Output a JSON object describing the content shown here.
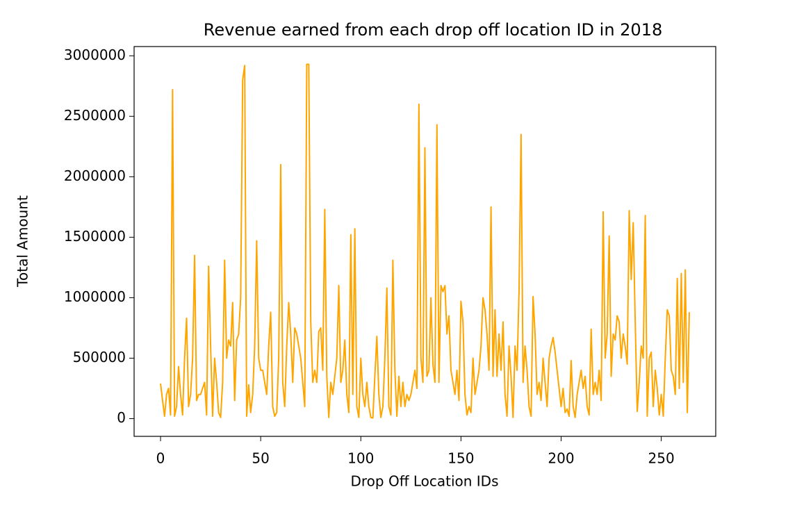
{
  "chart_data": {
    "type": "line",
    "title": "Revenue earned from each drop off location ID in 2018",
    "xlabel": "Drop Off Location IDs",
    "ylabel": "Total Amount",
    "xlim": [
      -13.2,
      277.2
    ],
    "ylim": [
      -146500,
      3076500
    ],
    "xticks": [
      0,
      50,
      100,
      150,
      200,
      250
    ],
    "yticks": [
      0,
      500000,
      1000000,
      1500000,
      2000000,
      2500000,
      3000000
    ],
    "x": [
      0,
      1,
      2,
      3,
      4,
      5,
      6,
      7,
      8,
      9,
      10,
      11,
      12,
      13,
      14,
      15,
      16,
      17,
      18,
      19,
      20,
      21,
      22,
      23,
      24,
      25,
      26,
      27,
      28,
      29,
      30,
      31,
      32,
      33,
      34,
      35,
      36,
      37,
      38,
      39,
      40,
      41,
      42,
      43,
      44,
      45,
      46,
      47,
      48,
      49,
      50,
      51,
      52,
      53,
      54,
      55,
      56,
      57,
      58,
      59,
      60,
      61,
      62,
      63,
      64,
      65,
      66,
      67,
      68,
      69,
      70,
      71,
      72,
      73,
      74,
      75,
      76,
      77,
      78,
      79,
      80,
      81,
      82,
      83,
      84,
      85,
      86,
      87,
      88,
      89,
      90,
      91,
      92,
      93,
      94,
      95,
      96,
      97,
      98,
      99,
      100,
      101,
      102,
      103,
      104,
      105,
      106,
      107,
      108,
      109,
      110,
      111,
      112,
      113,
      114,
      115,
      116,
      117,
      118,
      119,
      120,
      121,
      122,
      123,
      124,
      125,
      126,
      127,
      128,
      129,
      130,
      131,
      132,
      133,
      134,
      135,
      136,
      137,
      138,
      139,
      140,
      141,
      142,
      143,
      144,
      145,
      146,
      147,
      148,
      149,
      150,
      151,
      152,
      153,
      154,
      155,
      156,
      157,
      158,
      159,
      160,
      161,
      162,
      163,
      164,
      165,
      166,
      167,
      168,
      169,
      170,
      171,
      172,
      173,
      174,
      175,
      176,
      177,
      178,
      179,
      180,
      181,
      182,
      183,
      184,
      185,
      186,
      187,
      188,
      189,
      190,
      191,
      192,
      193,
      194,
      195,
      196,
      197,
      198,
      199,
      200,
      201,
      202,
      203,
      204,
      205,
      206,
      207,
      208,
      209,
      210,
      211,
      212,
      213,
      214,
      215,
      216,
      217,
      218,
      219,
      220,
      221,
      222,
      223,
      224,
      225,
      226,
      227,
      228,
      229,
      230,
      231,
      232,
      233,
      234,
      235,
      236,
      237,
      238,
      239,
      240,
      241,
      242,
      243,
      244,
      245,
      246,
      247,
      248,
      249,
      250,
      251,
      252,
      253,
      254,
      255,
      256,
      257,
      258,
      259,
      260,
      261,
      262,
      263,
      264
    ],
    "series": [
      {
        "color": "#ffa500",
        "values": [
          290000,
          150000,
          20000,
          200000,
          250000,
          30000,
          2720000,
          20000,
          100000,
          430000,
          200000,
          30000,
          500000,
          830000,
          100000,
          200000,
          500000,
          1350000,
          150000,
          200000,
          200000,
          250000,
          300000,
          30000,
          1260000,
          600000,
          20000,
          500000,
          300000,
          50000,
          10000,
          300000,
          1310000,
          500000,
          650000,
          600000,
          960000,
          150000,
          650000,
          700000,
          1000000,
          2800000,
          2920000,
          20000,
          280000,
          50000,
          200000,
          600000,
          1470000,
          500000,
          400000,
          400000,
          300000,
          200000,
          600000,
          880000,
          100000,
          20000,
          50000,
          500000,
          2100000,
          300000,
          100000,
          600000,
          960000,
          700000,
          300000,
          750000,
          700000,
          600000,
          500000,
          300000,
          100000,
          2930000,
          2930000,
          800000,
          300000,
          400000,
          300000,
          720000,
          750000,
          400000,
          1730000,
          350000,
          10000,
          300000,
          200000,
          350000,
          500000,
          1100000,
          300000,
          400000,
          650000,
          200000,
          50000,
          1520000,
          200000,
          1570000,
          100000,
          10000,
          500000,
          200000,
          100000,
          300000,
          100000,
          10000,
          5000,
          350000,
          680000,
          200000,
          10000,
          100000,
          500000,
          1080000,
          100000,
          30000,
          1310000,
          400000,
          20000,
          350000,
          100000,
          300000,
          100000,
          200000,
          150000,
          200000,
          300000,
          400000,
          250000,
          2600000,
          500000,
          300000,
          2240000,
          350000,
          400000,
          1000000,
          450000,
          300000,
          2430000,
          300000,
          1100000,
          1050000,
          1100000,
          700000,
          850000,
          400000,
          300000,
          200000,
          400000,
          150000,
          970000,
          800000,
          200000,
          30000,
          100000,
          50000,
          500000,
          200000,
          300000,
          400000,
          600000,
          1000000,
          900000,
          700000,
          400000,
          1750000,
          350000,
          900000,
          350000,
          700000,
          400000,
          800000,
          200000,
          20000,
          600000,
          350000,
          10000,
          600000,
          400000,
          1060000,
          2350000,
          300000,
          600000,
          400000,
          100000,
          20000,
          1010000,
          700000,
          200000,
          300000,
          150000,
          500000,
          300000,
          100000,
          500000,
          600000,
          670000,
          550000,
          400000,
          250000,
          100000,
          250000,
          50000,
          80000,
          20000,
          480000,
          100000,
          10000,
          200000,
          300000,
          400000,
          250000,
          350000,
          100000,
          30000,
          740000,
          200000,
          300000,
          200000,
          400000,
          150000,
          1710000,
          500000,
          700000,
          1510000,
          350000,
          700000,
          650000,
          850000,
          800000,
          500000,
          700000,
          600000,
          450000,
          1720000,
          1150000,
          1620000,
          800000,
          60000,
          300000,
          600000,
          500000,
          1680000,
          20000,
          500000,
          550000,
          100000,
          400000,
          250000,
          30000,
          200000,
          20000,
          500000,
          900000,
          850000,
          400000,
          350000,
          200000,
          1160000,
          250000,
          1200000,
          300000,
          1230000,
          50000,
          880000
        ]
      }
    ]
  }
}
